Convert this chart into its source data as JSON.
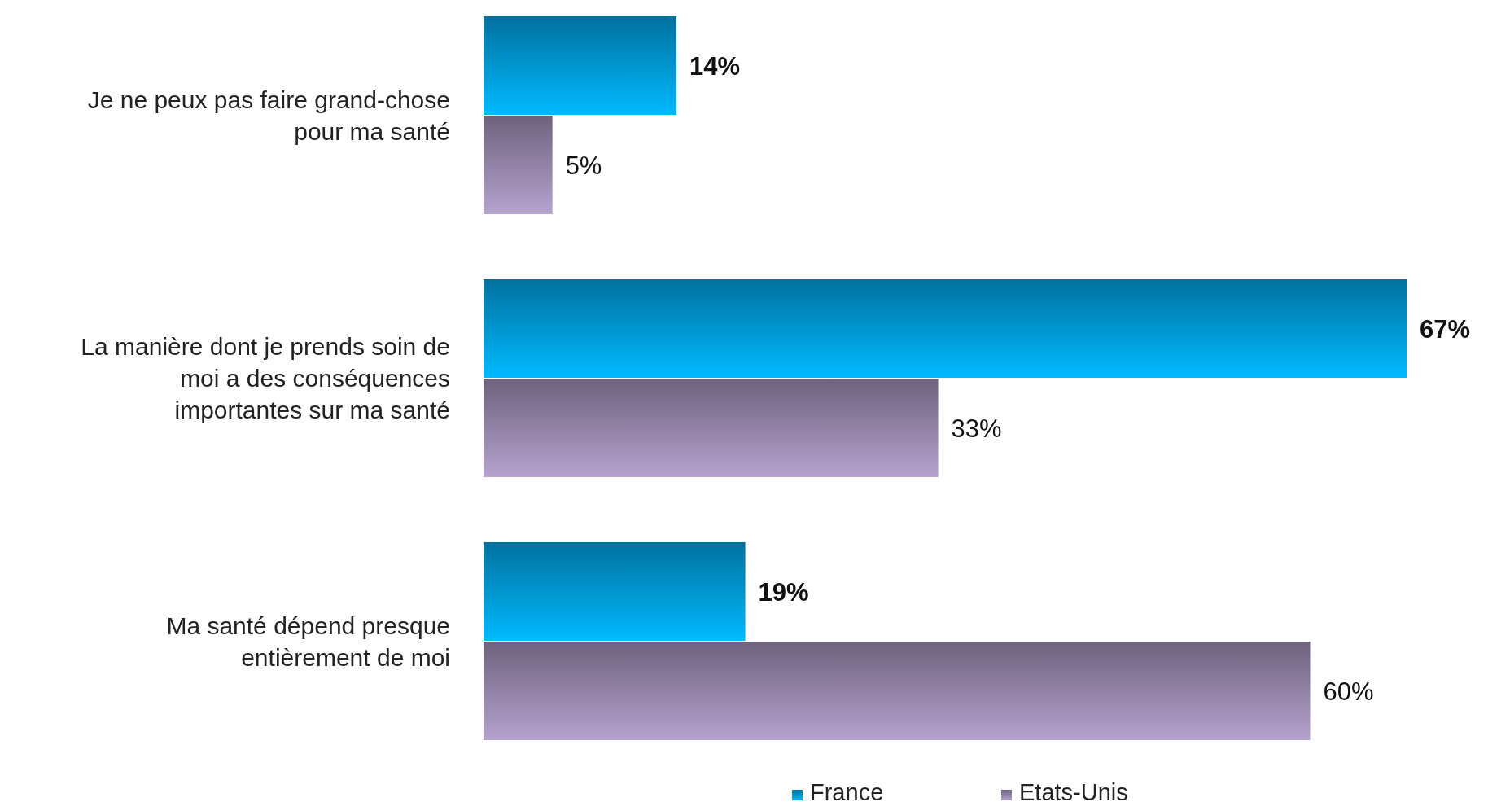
{
  "chart_data": {
    "type": "bar",
    "orientation": "horizontal",
    "categories": [
      "Je ne peux pas faire grand-chose pour ma santé",
      "La manière dont je prends soin de moi a des conséquences importantes sur ma santé",
      "Ma santé dépend presque entièrement de moi"
    ],
    "series": [
      {
        "name": "France",
        "color": "#0096d2",
        "values": [
          14,
          67,
          19
        ],
        "value_labels": [
          "14%",
          "67%",
          "19%"
        ]
      },
      {
        "name": "Etats-Unis",
        "color": "#9283a6",
        "values": [
          5,
          33,
          60
        ],
        "value_labels": [
          "5%",
          "33%",
          "60%"
        ]
      }
    ],
    "legend": "bottom",
    "grid": false
  }
}
